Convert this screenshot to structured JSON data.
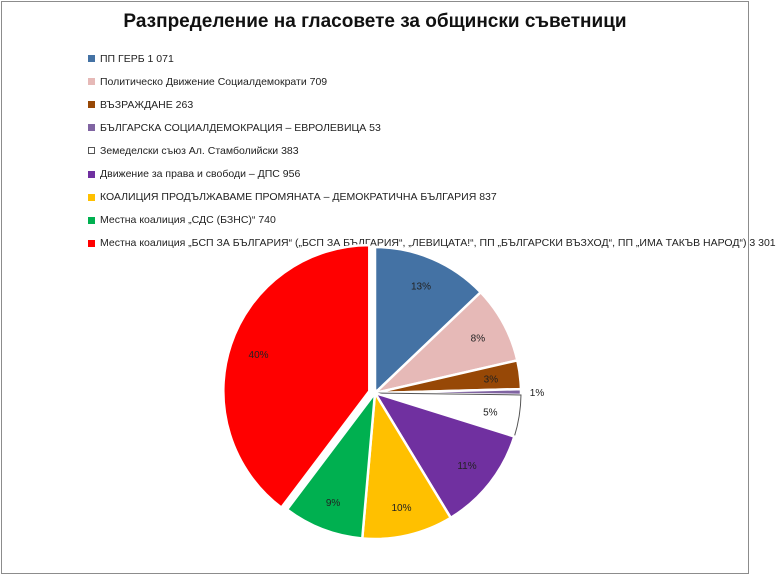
{
  "chart_data": {
    "type": "pie",
    "title": "Разпределение на гласовете за общински съветници",
    "legend_position": "top-left",
    "slices": [
      {
        "label": "ПП ГЕРБ 1 071",
        "value": 1071,
        "pct_label": "13%",
        "color": "#4472a4"
      },
      {
        "label": "Политическо Движение Социалдемократи 709",
        "value": 709,
        "pct_label": "8%",
        "color": "#e6b9b7"
      },
      {
        "label": "ВЪЗРАЖДАНЕ 263",
        "value": 263,
        "pct_label": "3%",
        "color": "#974806"
      },
      {
        "label": "БЪЛГАРСКА СОЦИАЛДЕМОКРАЦИЯ – ЕВРОЛЕВИЦА 53",
        "value": 53,
        "pct_label": "1%",
        "color": "#8064a2"
      },
      {
        "label": "Земеделски съюз Ал. Стамболийски 383",
        "value": 383,
        "pct_label": "5%",
        "color": "#ffffff"
      },
      {
        "label": "Движение за права и свободи – ДПС 956",
        "value": 956,
        "pct_label": "11%",
        "color": "#7030a0"
      },
      {
        "label": "КОАЛИЦИЯ ПРОДЪЛЖАВАМЕ ПРОМЯНАТА – ДЕМОКРАТИЧНА БЪЛГАРИЯ 837",
        "value": 837,
        "pct_label": "10%",
        "color": "#ffc000"
      },
      {
        "label": "Местна коалиция „СДС (БЗНС)“ 740",
        "value": 740,
        "pct_label": "9%",
        "color": "#00b050"
      },
      {
        "label": "Местна коалиция „БСП ЗА БЪЛГАРИЯ“ („БСП ЗА БЪЛГАРИЯ“, „ЛЕВИЦАТА!“, ПП „БЪЛГАРСКИ ВЪЗХОД“, ПП „ИМА ТАКЪВ НАРОД“) 3 301",
        "value": 3301,
        "pct_label": "40%",
        "color": "#ff0000"
      }
    ]
  }
}
